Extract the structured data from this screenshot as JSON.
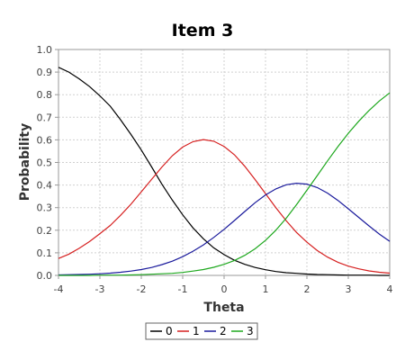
{
  "chart_data": {
    "type": "line",
    "title": "Item 3",
    "xlabel": "Theta",
    "ylabel": "Probability",
    "xlim": [
      -4,
      4
    ],
    "ylim": [
      0,
      1
    ],
    "xticks": [
      -4,
      -3,
      -2,
      -1,
      0,
      1,
      2,
      3,
      4
    ],
    "yticks": [
      0,
      0.1,
      0.2,
      0.3,
      0.4,
      0.5,
      0.6,
      0.7,
      0.8,
      0.9,
      1.0
    ],
    "ytick_labels": [
      "0.0",
      "0.1",
      "0.2",
      "0.3",
      "0.4",
      "0.5",
      "0.6",
      "0.7",
      "0.8",
      "0.9",
      "1.0"
    ],
    "grid": true,
    "legend_position": "bottom",
    "background": "#ffffff",
    "x": [
      -4,
      -3.75,
      -3.5,
      -3.25,
      -3,
      -2.75,
      -2.5,
      -2.25,
      -2,
      -1.75,
      -1.5,
      -1.25,
      -1,
      -0.75,
      -0.5,
      -0.25,
      0,
      0.25,
      0.5,
      0.75,
      1,
      1.25,
      1.5,
      1.75,
      2,
      2.25,
      2.5,
      2.75,
      3,
      3.25,
      3.5,
      3.75,
      4
    ],
    "series": [
      {
        "name": "0",
        "color": "#000000",
        "values": [
          0.921,
          0.9,
          0.87,
          0.836,
          0.795,
          0.749,
          0.689,
          0.624,
          0.555,
          0.48,
          0.403,
          0.333,
          0.268,
          0.21,
          0.162,
          0.122,
          0.092,
          0.067,
          0.049,
          0.035,
          0.025,
          0.017,
          0.012,
          0.009,
          0.006,
          0.004,
          0.003,
          0.002,
          0.001,
          0.001,
          0.001,
          0.0,
          0.0
        ]
      },
      {
        "name": "1",
        "color": "#d62020",
        "values": [
          0.075,
          0.094,
          0.12,
          0.15,
          0.185,
          0.221,
          0.266,
          0.315,
          0.37,
          0.425,
          0.48,
          0.53,
          0.568,
          0.592,
          0.601,
          0.594,
          0.571,
          0.534,
          0.483,
          0.424,
          0.362,
          0.3,
          0.242,
          0.19,
          0.147,
          0.11,
          0.081,
          0.058,
          0.041,
          0.029,
          0.02,
          0.014,
          0.01
        ]
      },
      {
        "name": "2",
        "color": "#1a1a9c",
        "values": [
          0.002,
          0.003,
          0.004,
          0.005,
          0.007,
          0.01,
          0.014,
          0.019,
          0.026,
          0.035,
          0.048,
          0.063,
          0.083,
          0.107,
          0.135,
          0.168,
          0.204,
          0.243,
          0.283,
          0.322,
          0.356,
          0.383,
          0.401,
          0.408,
          0.404,
          0.389,
          0.364,
          0.332,
          0.295,
          0.257,
          0.219,
          0.183,
          0.151
        ]
      },
      {
        "name": "3",
        "color": "#1ea81e",
        "values": [
          0.0,
          0.0,
          0.0,
          0.0,
          0.001,
          0.001,
          0.001,
          0.002,
          0.003,
          0.005,
          0.007,
          0.009,
          0.013,
          0.019,
          0.026,
          0.036,
          0.049,
          0.066,
          0.089,
          0.118,
          0.155,
          0.2,
          0.253,
          0.313,
          0.377,
          0.442,
          0.507,
          0.57,
          0.629,
          0.682,
          0.73,
          0.772,
          0.808
        ]
      }
    ]
  }
}
